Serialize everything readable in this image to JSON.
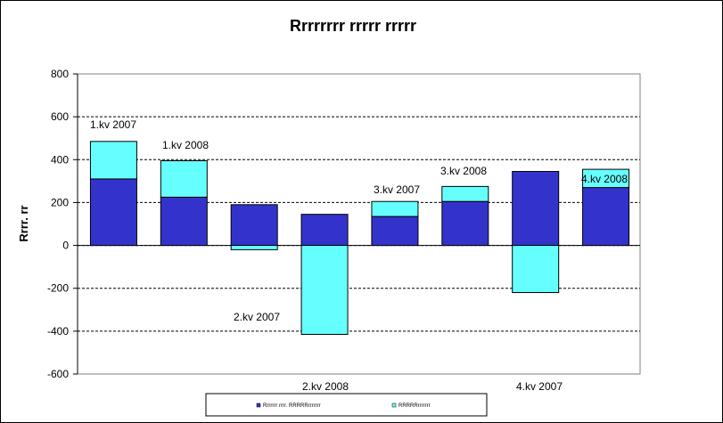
{
  "chart_data": {
    "type": "bar",
    "stacked": true,
    "title": "Rrrrrrrr rrrrr rrrrr",
    "xlabel": "",
    "ylabel": "Rrrr. rr",
    "ylim": [
      -600,
      800
    ],
    "yticks": [
      "800",
      "600",
      "400",
      "200",
      "0",
      "-200",
      "-400",
      "-600"
    ],
    "gridlines": "horizontal dashed",
    "categories": [
      "1.kv 2007",
      "1.kv 2008",
      "2.kv 2007",
      "2.kv 2008",
      "3.kv 2007",
      "3.kv 2008",
      "4.kv 2007",
      "4.kv 2008"
    ],
    "data_labels": [
      "1.kv 2007",
      "1.kv 2008",
      "2.kv 2007",
      "2.kv 2008",
      "3.kv 2007",
      "3.kv 2008",
      "4.kv 2007",
      "4.kv 2008"
    ],
    "series": [
      {
        "name": "Rrrrrrr rrrr. RRRRRrrrrrrr",
        "color": "#3333cc",
        "values": [
          310,
          225,
          190,
          145,
          135,
          205,
          345,
          270
        ]
      },
      {
        "name": "RRRRRrrrrrrr",
        "color": "#66ffff",
        "values": [
          175,
          170,
          -20,
          -415,
          70,
          70,
          -220,
          85
        ]
      }
    ],
    "legend": "bottom"
  }
}
